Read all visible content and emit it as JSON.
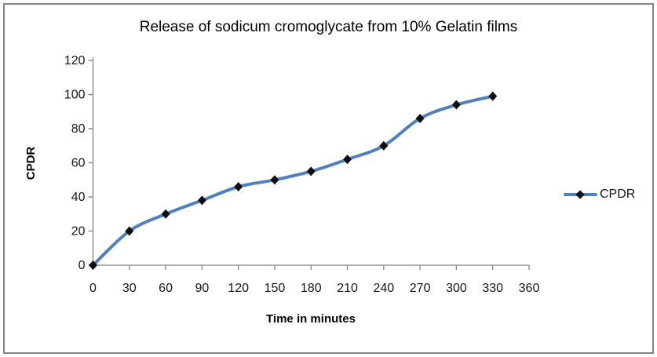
{
  "frame": {
    "border_color": "#848484",
    "background": "#ffffff"
  },
  "chart_data": {
    "type": "line",
    "title": "Release of sodicum cromoglycate from 10% Gelatin films",
    "xlabel": "Time in minutes",
    "ylabel": "CPDR",
    "x": [
      0,
      30,
      60,
      90,
      120,
      150,
      180,
      210,
      240,
      270,
      300,
      330
    ],
    "series": [
      {
        "name": "CPDR",
        "values": [
          0,
          20,
          30,
          38,
          46,
          50,
          55,
          62,
          70,
          86,
          94,
          99
        ],
        "color": "#4F81BD",
        "marker": "diamond",
        "marker_color": "#0d0f13"
      }
    ],
    "xlim": [
      0,
      360
    ],
    "ylim": [
      0,
      120
    ],
    "x_ticks": [
      0,
      30,
      60,
      90,
      120,
      150,
      180,
      210,
      240,
      270,
      300,
      330,
      360
    ],
    "y_ticks": [
      0,
      20,
      40,
      60,
      80,
      100,
      120
    ],
    "grid": false,
    "smooth": true,
    "axis_color": "#868686",
    "legend": {
      "position": "right",
      "entries": [
        "CPDR"
      ]
    }
  }
}
